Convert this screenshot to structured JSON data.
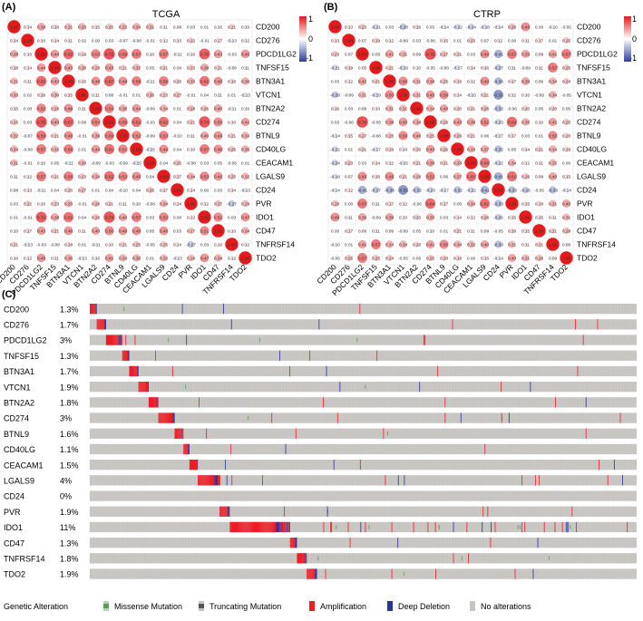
{
  "panels": {
    "a_label": "(A)",
    "b_label": "(B)",
    "c_label": "(C)",
    "a_title": "TCGA",
    "b_title": "CTRP"
  },
  "colorbar": {
    "max_label": "1",
    "mid_label": "0",
    "min_label": "-1"
  },
  "colors": {
    "positive": "#e41a1c",
    "negative": "#2c3e9e",
    "neutral": "#ffffff",
    "no_alteration": "#c7c5c2",
    "amplification": "#ee1c25",
    "deep_deletion": "#27349b",
    "missense": "#4fa24a",
    "truncating": "#555555"
  },
  "genes": [
    "CD200",
    "CD276",
    "PDCD1LG2",
    "TNFSF15",
    "BTN3A1",
    "VTCN1",
    "BTN2A2",
    "CD274",
    "BTNL9",
    "CD40LG",
    "CEACAM1",
    "LGALS9",
    "CD24",
    "PVR",
    "IDO1",
    "CD47",
    "TNFRSF14",
    "TDO2"
  ],
  "chart_data": [
    {
      "type": "heatmap",
      "title": "TCGA",
      "subtype": "correlation_circle_matrix",
      "labels": [
        "CD200",
        "CD276",
        "PDCD1LG2",
        "TNFSF15",
        "BTN3A1",
        "VTCN1",
        "BTN2A2",
        "CD274",
        "BTNL9",
        "CD40LG",
        "CEACAM1",
        "LGALS9",
        "CD24",
        "PVR",
        "IDO1",
        "CD47",
        "TNFRSF14",
        "TDO2"
      ],
      "range": [
        -1,
        1
      ],
      "matrix": [
        [
          1.0,
          0.14,
          0.38,
          0.18,
          0.31,
          0.33,
          0.15,
          0.25,
          0.32,
          0.34,
          0.31,
          0.11,
          0.08,
          0.03,
          0.01,
          0.1,
          0.21,
          0.1
        ],
        [
          0.14,
          1.0,
          0.1,
          0.14,
          0.11,
          0.02,
          -0.0,
          0.03,
          -0.07,
          -0.08,
          -0.01,
          0.12,
          0.13,
          0.22,
          -0.01,
          0.17,
          -0.13,
          0.12
        ],
        [
          0.38,
          0.1,
          1.0,
          0.44,
          0.65,
          0.19,
          0.53,
          0.75,
          0.59,
          0.57,
          0.1,
          0.57,
          -0.11,
          0.1,
          0.7,
          0.43,
          -0.03,
          0.45
        ],
        [
          0.18,
          0.14,
          0.44,
          1.0,
          0.43,
          0.3,
          0.28,
          0.43,
          0.21,
          0.32,
          0.05,
          0.21,
          0.04,
          0.23,
          0.38,
          0.21,
          -0.08,
          0.11
        ],
        [
          0.31,
          0.11,
          0.65,
          0.43,
          1.0,
          0.15,
          0.48,
          0.67,
          0.48,
          0.56,
          -0.11,
          0.56,
          0.2,
          0.33,
          0.61,
          0.46,
          0.18,
          0.36
        ],
        [
          0.33,
          0.02,
          0.19,
          0.3,
          0.15,
          1.0,
          0.11,
          0.08,
          -0.01,
          0.01,
          0.3,
          0.23,
          0.27,
          -0.01,
          0.04,
          0.11,
          0.01,
          -0.13
        ],
        [
          0.15,
          -0.0,
          0.53,
          0.28,
          0.48,
          0.11,
          1.0,
          0.54,
          0.36,
          0.44,
          -0.09,
          0.34,
          0.01,
          0.28,
          0.26,
          0.4,
          -0.11,
          0.1
        ],
        [
          0.25,
          0.03,
          0.75,
          0.43,
          0.67,
          0.08,
          0.54,
          1.0,
          0.56,
          0.61,
          -0.03,
          0.62,
          0.04,
          0.21,
          0.74,
          0.5,
          0.1,
          0.41
        ],
        [
          0.32,
          -0.07,
          0.59,
          0.21,
          0.48,
          -0.01,
          0.36,
          0.56,
          1.0,
          0.52,
          -0.09,
          0.53,
          -0.1,
          0.11,
          0.4,
          0.46,
          0.21,
          0.34
        ],
        [
          0.34,
          -0.08,
          0.57,
          0.32,
          0.56,
          0.01,
          0.44,
          0.61,
          0.52,
          1.0,
          -0.15,
          0.49,
          0.04,
          0.1,
          0.57,
          0.48,
          0.25,
          0.35
        ],
        [
          0.31,
          -0.01,
          0.1,
          0.05,
          -0.11,
          0.3,
          -0.09,
          -0.03,
          -0.09,
          -0.15,
          1.0,
          0.04,
          0.25,
          -0.08,
          0.03,
          0.05,
          -0.05,
          0.01
        ],
        [
          0.11,
          0.12,
          0.57,
          0.21,
          0.56,
          0.23,
          0.34,
          0.62,
          0.53,
          0.49,
          0.04,
          1.0,
          0.17,
          0.34,
          0.53,
          0.46,
          0.25,
          0.32
        ],
        [
          0.08,
          0.13,
          -0.11,
          0.04,
          0.2,
          0.27,
          0.01,
          0.04,
          -0.1,
          0.04,
          0.25,
          0.17,
          1.0,
          0.14,
          -0.0,
          0.03,
          0.14,
          -0.13
        ],
        [
          0.03,
          0.22,
          0.1,
          0.23,
          0.33,
          -0.01,
          0.28,
          0.21,
          0.11,
          0.1,
          -0.08,
          0.34,
          0.14,
          1.0,
          0.12,
          0.27,
          -0.27,
          0.29
        ],
        [
          0.01,
          -0.01,
          0.7,
          0.38,
          0.61,
          0.04,
          0.26,
          0.74,
          0.4,
          0.57,
          0.03,
          0.53,
          -0.0,
          0.12,
          1.0,
          0.51,
          0.03,
          0.47
        ],
        [
          0.1,
          0.17,
          0.43,
          0.21,
          0.46,
          0.11,
          0.4,
          0.5,
          0.46,
          0.48,
          0.05,
          0.46,
          0.03,
          0.27,
          0.51,
          1.0,
          0.1,
          0.34
        ],
        [
          0.21,
          -0.13,
          -0.03,
          -0.08,
          0.18,
          0.01,
          -0.11,
          0.1,
          0.21,
          0.25,
          -0.05,
          0.25,
          0.14,
          -0.27,
          0.03,
          0.1,
          1.0,
          0.12
        ],
        [
          0.1,
          0.12,
          0.45,
          0.11,
          0.36,
          -0.13,
          0.1,
          0.41,
          0.34,
          0.35,
          0.01,
          0.32,
          -0.13,
          0.29,
          0.47,
          0.34,
          0.12,
          1.0
        ]
      ]
    },
    {
      "type": "heatmap",
      "title": "CTRP",
      "subtype": "correlation_circle_matrix",
      "labels": [
        "CD200",
        "CD276",
        "PDCD1LG2",
        "TNFSF15",
        "BTN3A1",
        "VTCN1",
        "BTN2A2",
        "CD274",
        "BTNL9",
        "CD40LG",
        "CEACAM1",
        "LGALS9",
        "CD24",
        "PVR",
        "IDO1",
        "CD47",
        "TNFRSF14",
        "TDO2"
      ],
      "range": [
        -1,
        1
      ],
      "matrix": [
        [
          1.0,
          0.13,
          0.23,
          -0.21,
          0.03,
          -0.28,
          0.16,
          0.03,
          -0.14,
          -0.22,
          -0.24,
          -0.18,
          -0.14,
          0.28,
          0.49,
          0.0,
          -0.1,
          -0.05
        ],
        [
          0.13,
          1.0,
          0.07,
          0.19,
          0.12,
          -0.09,
          0.03,
          -0.06,
          0.15,
          0.01,
          0.23,
          0.07,
          0.12,
          0.0,
          0.11,
          0.17,
          0.01,
          0.25
        ],
        [
          0.23,
          0.07,
          1.0,
          0.05,
          0.41,
          0.31,
          0.09,
          0.76,
          0.27,
          0.21,
          0.03,
          0.49,
          -0.41,
          0.57,
          0.39,
          0.09,
          0.41,
          0.57
        ],
        [
          -0.21,
          0.19,
          0.05,
          1.0,
          0.21,
          -0.19,
          0.1,
          -0.05,
          -0.08,
          -0.17,
          0.14,
          0.16,
          -0.27,
          0.11,
          -0.09,
          0.11,
          0.57,
          0.25
        ],
        [
          0.03,
          0.12,
          0.41,
          0.21,
          1.0,
          0.5,
          0.31,
          0.38,
          0.25,
          0.19,
          0.12,
          0.49,
          -0.36,
          0.17,
          0.39,
          0.09,
          0.34,
          0.24
        ],
        [
          -0.28,
          -0.09,
          0.31,
          -0.19,
          0.5,
          1.0,
          0.31,
          0.45,
          0.5,
          0.14,
          -0.15,
          0.21,
          -0.55,
          0.12,
          0.1,
          -0.09,
          0.34,
          -0.05
        ],
        [
          0.16,
          0.03,
          0.09,
          0.1,
          0.31,
          0.31,
          1.0,
          0.34,
          0.4,
          0.2,
          0.21,
          0.28,
          -0.32,
          -0.06,
          0.2,
          0.05,
          0.2,
          0.05
        ],
        [
          0.03,
          -0.06,
          0.76,
          -0.05,
          0.38,
          0.45,
          0.34,
          1.0,
          0.25,
          0.43,
          0.39,
          0.51,
          -0.23,
          0.64,
          0.35,
          0.1,
          0.41,
          0.25
        ],
        [
          -0.14,
          0.15,
          0.27,
          -0.08,
          0.25,
          0.5,
          0.4,
          0.25,
          1.0,
          0.26,
          0.21,
          0.06,
          -0.17,
          0.17,
          0.03,
          0.01,
          0.5,
          0.2
        ],
        [
          -0.22,
          0.01,
          0.21,
          -0.17,
          0.19,
          0.14,
          0.2,
          0.43,
          0.26,
          1.0,
          0.33,
          0.37,
          -0.32,
          0.05,
          0.14,
          0.21,
          0.34,
          0.19
        ],
        [
          -0.24,
          0.23,
          0.03,
          0.14,
          0.12,
          -0.15,
          0.21,
          0.39,
          0.21,
          0.33,
          1.0,
          0.6,
          -0.22,
          0.34,
          0.12,
          0.11,
          0.32,
          0.0
        ],
        [
          -0.18,
          0.07,
          0.49,
          0.16,
          0.49,
          0.21,
          0.28,
          0.51,
          0.06,
          0.37,
          0.6,
          1.0,
          -0.41,
          0.61,
          0.26,
          0.09,
          0.4,
          0.15
        ],
        [
          -0.14,
          0.12,
          -0.41,
          -0.27,
          -0.36,
          -0.55,
          -0.32,
          -0.23,
          -0.17,
          -0.32,
          -0.22,
          -0.41,
          1.0,
          -0.33,
          -0.26,
          -0.05,
          -0.33,
          -0.14
        ],
        [
          0.28,
          0.0,
          0.57,
          0.11,
          0.17,
          0.12,
          -0.06,
          0.64,
          0.17,
          0.05,
          0.34,
          0.61,
          -0.33,
          1.0,
          0.15,
          0.18,
          0.31,
          0.4
        ],
        [
          0.49,
          0.11,
          0.39,
          -0.09,
          0.39,
          0.1,
          0.2,
          0.35,
          0.03,
          0.14,
          0.12,
          0.26,
          -0.26,
          0.15,
          1.0,
          0.15,
          0.11,
          0.31
        ],
        [
          0.0,
          0.17,
          0.09,
          0.11,
          0.09,
          -0.09,
          0.05,
          0.1,
          0.01,
          0.21,
          0.11,
          0.09,
          -0.05,
          0.18,
          0.15,
          1.0,
          0.21,
          0.28
        ],
        [
          -0.1,
          0.01,
          0.41,
          0.57,
          0.34,
          0.34,
          0.2,
          0.41,
          0.5,
          0.34,
          0.32,
          0.4,
          -0.33,
          0.31,
          0.11,
          0.21,
          1.0,
          0.09
        ],
        [
          -0.05,
          0.25,
          0.57,
          0.25,
          0.24,
          -0.05,
          0.05,
          0.25,
          0.2,
          0.19,
          0.0,
          0.15,
          -0.14,
          0.4,
          0.31,
          0.28,
          0.09,
          1.0
        ]
      ]
    },
    {
      "type": "oncoprint",
      "genes": [
        "CD200",
        "CD276",
        "PDCD1LG2",
        "TNFSF15",
        "BTN3A1",
        "VTCN1",
        "BTN2A2",
        "CD274",
        "BTNL9",
        "CD40LG",
        "CEACAM1",
        "LGALS9",
        "CD24",
        "PVR",
        "IDO1",
        "CD47",
        "TNFRSF14",
        "TDO2"
      ],
      "alteration_percent": [
        "1.3%",
        "1.7%",
        "3%",
        "1.3%",
        "1.7%",
        "1.9%",
        "1.8%",
        "3%",
        "1.6%",
        "1.1%",
        "1.5%",
        "4%",
        "0%",
        "1.9%",
        "11%",
        "1.3%",
        "1.8%",
        "1.9%"
      ],
      "legend": {
        "title": "Genetic Alteration",
        "items": [
          {
            "label": "Missense Mutation",
            "key": "missense"
          },
          {
            "label": "Truncating Mutation",
            "key": "truncating"
          },
          {
            "label": "Amplification",
            "key": "amplification"
          },
          {
            "label": "Deep Deletion",
            "key": "deep_deletion"
          },
          {
            "label": "No alterations",
            "key": "no_alteration"
          }
        ]
      }
    }
  ]
}
